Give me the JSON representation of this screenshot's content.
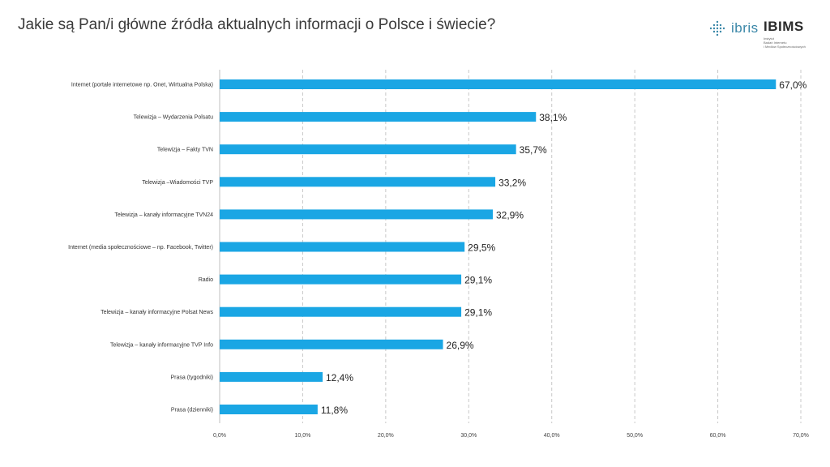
{
  "title": "Jakie są Pan/i główne źródła aktualnych informacji o Polsce i świecie?",
  "logos": {
    "ibris": {
      "text": "ibris",
      "icon": "dot-grid-icon"
    },
    "ibims": {
      "text": "IBIMS",
      "sub": [
        "Instytut",
        "Badań Internetu",
        "i Mediów Społecznościowych"
      ]
    }
  },
  "colors": {
    "bar": "#1aa6e4",
    "grid": "#c8c8c8",
    "axis": "#bfbfbf"
  },
  "chart_data": {
    "type": "bar",
    "orientation": "horizontal",
    "title": "Jakie są Pan/i główne źródła aktualnych informacji o Polsce i świecie?",
    "categories": [
      "Internet (portale internetowe np. Onet, Wirtualna Polska)",
      "Telewizja – Wydarzenia Polsatu",
      "Telewizja – Fakty TVN",
      "Telewizja –Wiadomości TVP",
      "Telewizja – kanały informacyjne TVN24",
      "Internet (media społecznościowe – np. Facebook, Twitter)",
      "Radio",
      "Telewizja – kanały informacyjne Polsat News",
      "Telewizja – kanały informacyjne TVP Info",
      "Prasa (tygodniki)",
      "Prasa (dzienniki)"
    ],
    "values": [
      67.0,
      38.1,
      35.7,
      33.2,
      32.9,
      29.5,
      29.1,
      29.1,
      26.9,
      12.4,
      11.8
    ],
    "value_labels": [
      "67,0%",
      "38,1%",
      "35,7%",
      "33,2%",
      "32,9%",
      "29,5%",
      "29,1%",
      "29,1%",
      "26,9%",
      "12,4%",
      "11,8%"
    ],
    "xlim": [
      0,
      70
    ],
    "xticks": [
      0,
      10,
      20,
      30,
      40,
      50,
      60,
      70
    ],
    "xtick_labels": [
      "0,0%",
      "10,0%",
      "20,0%",
      "30,0%",
      "40,0%",
      "50,0%",
      "60,0%",
      "70,0%"
    ],
    "grid": "vertical-dashed",
    "legend": "none"
  }
}
